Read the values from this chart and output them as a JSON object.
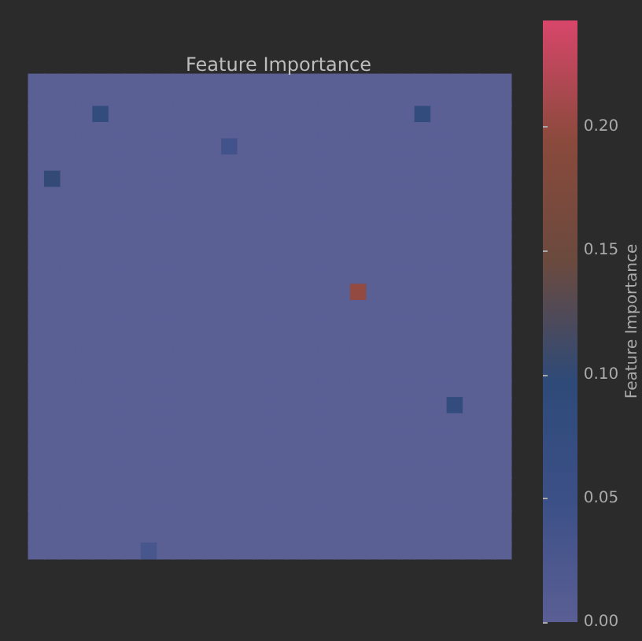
{
  "chart_data": {
    "type": "heatmap",
    "title": "Feature Importance",
    "clabel": "Feature Importance",
    "categories": [
      null,
      null,
      null,
      null,
      null,
      null,
      null,
      null,
      null,
      null,
      null,
      null,
      null,
      null,
      null,
      null,
      null,
      null,
      null,
      null,
      null,
      null,
      null,
      null,
      null,
      null,
      null,
      null,
      null,
      null
    ],
    "y_categories": [
      null,
      null,
      null,
      null,
      null,
      null,
      null,
      null,
      null,
      null,
      null,
      null,
      null,
      null,
      null,
      null,
      null,
      null,
      null,
      null,
      null,
      null,
      null,
      null,
      null,
      null,
      null,
      null,
      null,
      null
    ],
    "cells": [
      [
        0,
        0,
        0,
        0,
        0,
        0,
        0,
        0,
        0,
        0,
        0,
        0,
        0,
        0,
        0,
        0,
        0,
        0,
        0,
        0,
        0,
        0,
        0,
        0,
        0,
        0,
        0,
        0,
        0,
        0
      ],
      [
        0,
        0,
        0,
        0,
        0,
        0,
        0,
        0,
        0,
        0,
        0,
        0,
        0,
        0,
        0,
        0,
        0,
        0,
        0,
        0,
        0,
        0,
        0,
        0,
        0,
        0,
        0,
        0,
        0,
        0
      ],
      [
        0,
        0,
        0,
        0,
        0.08,
        0,
        0,
        0,
        0,
        0,
        0,
        0,
        0,
        0,
        0,
        0,
        0,
        0,
        0,
        0,
        0,
        0,
        0,
        0,
        0.08,
        0,
        0,
        0,
        0,
        0
      ],
      [
        0,
        0,
        0,
        0,
        0,
        0,
        0,
        0,
        0,
        0,
        0,
        0,
        0,
        0,
        0,
        0,
        0,
        0,
        0,
        0,
        0,
        0,
        0,
        0,
        0,
        0,
        0,
        0,
        0,
        0
      ],
      [
        0,
        0,
        0,
        0,
        0,
        0,
        0,
        0,
        0,
        0,
        0,
        0,
        0.04,
        0,
        0,
        0,
        0,
        0,
        0,
        0,
        0,
        0,
        0,
        0,
        0,
        0,
        0,
        0,
        0,
        0
      ],
      [
        0,
        0,
        0,
        0,
        0,
        0,
        0,
        0,
        0,
        0,
        0,
        0,
        0,
        0,
        0,
        0,
        0,
        0,
        0,
        0,
        0,
        0,
        0,
        0,
        0,
        0,
        0,
        0,
        0,
        0
      ],
      [
        0,
        0.1,
        0,
        0,
        0,
        0,
        0,
        0,
        0,
        0,
        0,
        0,
        0,
        0,
        0,
        0,
        0,
        0,
        0,
        0,
        0,
        0,
        0,
        0,
        0,
        0,
        0,
        0,
        0,
        0
      ],
      [
        0,
        0,
        0,
        0,
        0,
        0,
        0,
        0,
        0,
        0,
        0,
        0,
        0,
        0,
        0,
        0,
        0,
        0,
        0,
        0,
        0,
        0,
        0,
        0,
        0,
        0,
        0,
        0,
        0,
        0
      ],
      [
        0,
        0,
        0,
        0,
        0,
        0,
        0,
        0,
        0,
        0,
        0,
        0,
        0,
        0,
        0,
        0,
        0,
        0,
        0,
        0,
        0,
        0,
        0,
        0,
        0,
        0,
        0,
        0,
        0,
        0
      ],
      [
        0,
        0,
        0,
        0,
        0,
        0,
        0,
        0,
        0,
        0,
        0,
        0,
        0,
        0,
        0,
        0,
        0,
        0,
        0,
        0,
        0,
        0,
        0,
        0,
        0,
        0,
        0,
        0,
        0,
        0
      ],
      [
        0,
        0,
        0,
        0,
        0,
        0,
        0,
        0,
        0,
        0,
        0,
        0,
        0,
        0,
        0,
        0,
        0,
        0,
        0,
        0,
        0,
        0,
        0,
        0,
        0,
        0,
        0,
        0,
        0,
        0
      ],
      [
        0,
        0,
        0,
        0,
        0,
        0,
        0,
        0,
        0,
        0,
        0,
        0,
        0,
        0,
        0,
        0,
        0,
        0,
        0,
        0,
        0,
        0,
        0,
        0,
        0,
        0,
        0,
        0,
        0,
        0
      ],
      [
        0,
        0,
        0,
        0,
        0,
        0,
        0,
        0,
        0,
        0,
        0,
        0,
        0,
        0,
        0,
        0,
        0,
        0,
        0,
        0,
        0,
        0,
        0,
        0,
        0,
        0,
        0,
        0,
        0,
        0
      ],
      [
        0,
        0,
        0,
        0,
        0,
        0,
        0,
        0,
        0,
        0,
        0,
        0,
        0,
        0,
        0,
        0,
        0,
        0,
        0,
        0,
        0.2,
        0,
        0,
        0,
        0,
        0,
        0,
        0,
        0,
        0
      ],
      [
        0,
        0,
        0,
        0,
        0,
        0,
        0,
        0,
        0,
        0,
        0,
        0,
        0,
        0,
        0,
        0,
        0,
        0,
        0,
        0,
        0,
        0,
        0,
        0,
        0,
        0,
        0,
        0,
        0,
        0
      ],
      [
        0,
        0,
        0,
        0,
        0,
        0,
        0,
        0,
        0,
        0,
        0,
        0,
        0,
        0,
        0,
        0,
        0,
        0,
        0,
        0,
        0,
        0,
        0,
        0,
        0,
        0,
        0,
        0,
        0,
        0
      ],
      [
        0,
        0,
        0,
        0,
        0,
        0,
        0,
        0,
        0,
        0,
        0,
        0,
        0,
        0,
        0,
        0,
        0,
        0,
        0,
        0,
        0,
        0,
        0,
        0,
        0,
        0,
        0,
        0,
        0,
        0
      ],
      [
        0,
        0,
        0,
        0,
        0,
        0,
        0,
        0,
        0,
        0,
        0,
        0,
        0,
        0,
        0,
        0,
        0,
        0,
        0,
        0,
        0,
        0,
        0,
        0,
        0,
        0,
        0,
        0,
        0,
        0
      ],
      [
        0,
        0,
        0,
        0,
        0,
        0,
        0,
        0,
        0,
        0,
        0,
        0,
        0,
        0,
        0,
        0,
        0,
        0,
        0,
        0,
        0,
        0,
        0,
        0,
        0,
        0,
        0,
        0,
        0,
        0
      ],
      [
        0,
        0,
        0,
        0,
        0,
        0,
        0,
        0,
        0,
        0,
        0,
        0,
        0,
        0,
        0,
        0,
        0,
        0,
        0,
        0,
        0,
        0,
        0,
        0,
        0,
        0,
        0,
        0,
        0,
        0
      ],
      [
        0,
        0,
        0,
        0,
        0,
        0,
        0,
        0,
        0,
        0,
        0,
        0,
        0,
        0,
        0,
        0,
        0,
        0,
        0,
        0,
        0,
        0,
        0,
        0,
        0,
        0,
        0.08,
        0,
        0,
        0
      ],
      [
        0,
        0,
        0,
        0,
        0,
        0,
        0,
        0,
        0,
        0,
        0,
        0,
        0,
        0,
        0,
        0,
        0,
        0,
        0,
        0,
        0,
        0,
        0,
        0,
        0,
        0,
        0,
        0,
        0,
        0
      ],
      [
        0,
        0,
        0,
        0,
        0,
        0,
        0,
        0,
        0,
        0,
        0,
        0,
        0,
        0,
        0,
        0,
        0,
        0,
        0,
        0,
        0,
        0,
        0,
        0,
        0,
        0,
        0,
        0,
        0,
        0
      ],
      [
        0,
        0,
        0,
        0,
        0,
        0,
        0,
        0,
        0,
        0,
        0,
        0,
        0,
        0,
        0,
        0,
        0,
        0,
        0,
        0,
        0,
        0,
        0,
        0,
        0,
        0,
        0,
        0,
        0,
        0
      ],
      [
        0,
        0,
        0,
        0,
        0,
        0,
        0,
        0,
        0,
        0,
        0,
        0,
        0,
        0,
        0,
        0,
        0,
        0,
        0,
        0,
        0,
        0,
        0,
        0,
        0,
        0,
        0,
        0,
        0,
        0
      ],
      [
        0,
        0,
        0,
        0,
        0,
        0,
        0,
        0,
        0,
        0,
        0,
        0,
        0,
        0,
        0,
        0,
        0,
        0,
        0,
        0,
        0,
        0,
        0,
        0,
        0,
        0,
        0,
        0,
        0,
        0
      ],
      [
        0,
        0,
        0,
        0,
        0,
        0,
        0,
        0,
        0,
        0,
        0,
        0,
        0,
        0,
        0,
        0,
        0,
        0,
        0,
        0,
        0,
        0,
        0,
        0,
        0,
        0,
        0,
        0,
        0,
        0
      ],
      [
        0,
        0,
        0,
        0,
        0,
        0,
        0,
        0,
        0,
        0,
        0,
        0,
        0,
        0,
        0,
        0,
        0,
        0,
        0,
        0,
        0,
        0,
        0,
        0,
        0,
        0,
        0,
        0,
        0,
        0
      ],
      [
        0,
        0,
        0,
        0,
        0,
        0,
        0,
        0,
        0,
        0,
        0,
        0,
        0,
        0,
        0,
        0,
        0,
        0,
        0,
        0,
        0,
        0,
        0,
        0,
        0,
        0,
        0,
        0,
        0,
        0
      ],
      [
        0,
        0,
        0,
        0,
        0,
        0,
        0,
        0.03,
        0,
        0,
        0,
        0,
        0,
        0,
        0,
        0,
        0,
        0,
        0,
        0,
        0,
        0,
        0,
        0,
        0,
        0,
        0,
        0,
        0,
        0
      ]
    ],
    "clim": [
      0,
      0.243
    ],
    "cticks": [
      {
        "value": 0,
        "label": "0.00"
      },
      {
        "value": 0.05,
        "label": "0.05"
      },
      {
        "value": 0.1,
        "label": "0.10"
      },
      {
        "value": 0.15,
        "label": "0.15"
      },
      {
        "value": 0.2,
        "label": "0.20"
      }
    ]
  }
}
